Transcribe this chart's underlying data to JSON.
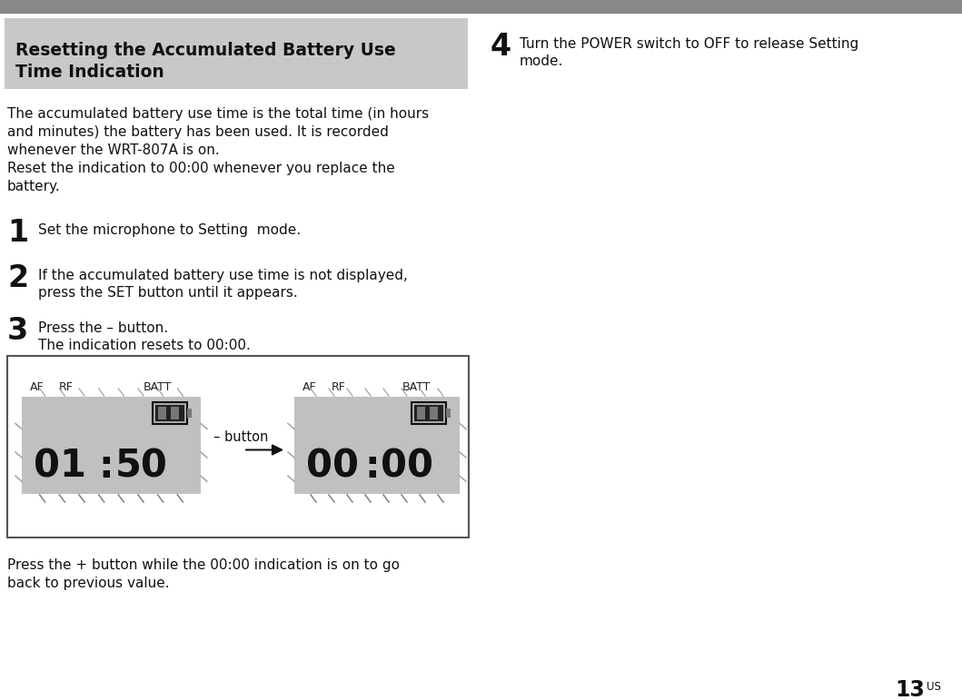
{
  "page_num": "13",
  "page_num_super": "US",
  "top_bar_color": "#888888",
  "header_bg_color": "#c8c8c8",
  "header_text_line1": "Resetting the Accumulated Battery Use",
  "header_text_line2": "Time Indication",
  "body_lines": [
    "The accumulated battery use time is the total time (in hours",
    "and minutes) the battery has been used. It is recorded",
    "whenever the WRT-807A is on.",
    "Reset the indication to 00:00 whenever you replace the",
    "battery."
  ],
  "step1_num": "1",
  "step1_text": "Set the microphone to Setting  mode.",
  "step2_num": "2",
  "step2_text_a": "If the accumulated battery use time is not displayed,",
  "step2_text_b": "press the SET button until it appears.",
  "step3_num": "3",
  "step3_text_a": "Press the – button.",
  "step3_text_b": "The indication resets to 00:00.",
  "step4_num": "4",
  "step4_text_a": "Turn the POWER switch to OFF to release Setting",
  "step4_text_b": "mode.",
  "body2_text_a": "Press the + button while the 00:00 indication is on to go",
  "body2_text_b": "back to previous value.",
  "display_bg": "#c0c0c0",
  "display_digit_on": "#111111",
  "display_digit_off": "#aaaaaa",
  "display_border": "#444444",
  "box_border_color": "#555555",
  "arrow_label": "– button",
  "bg_color": "#ffffff",
  "text_color": "#111111",
  "label_color": "#222222"
}
